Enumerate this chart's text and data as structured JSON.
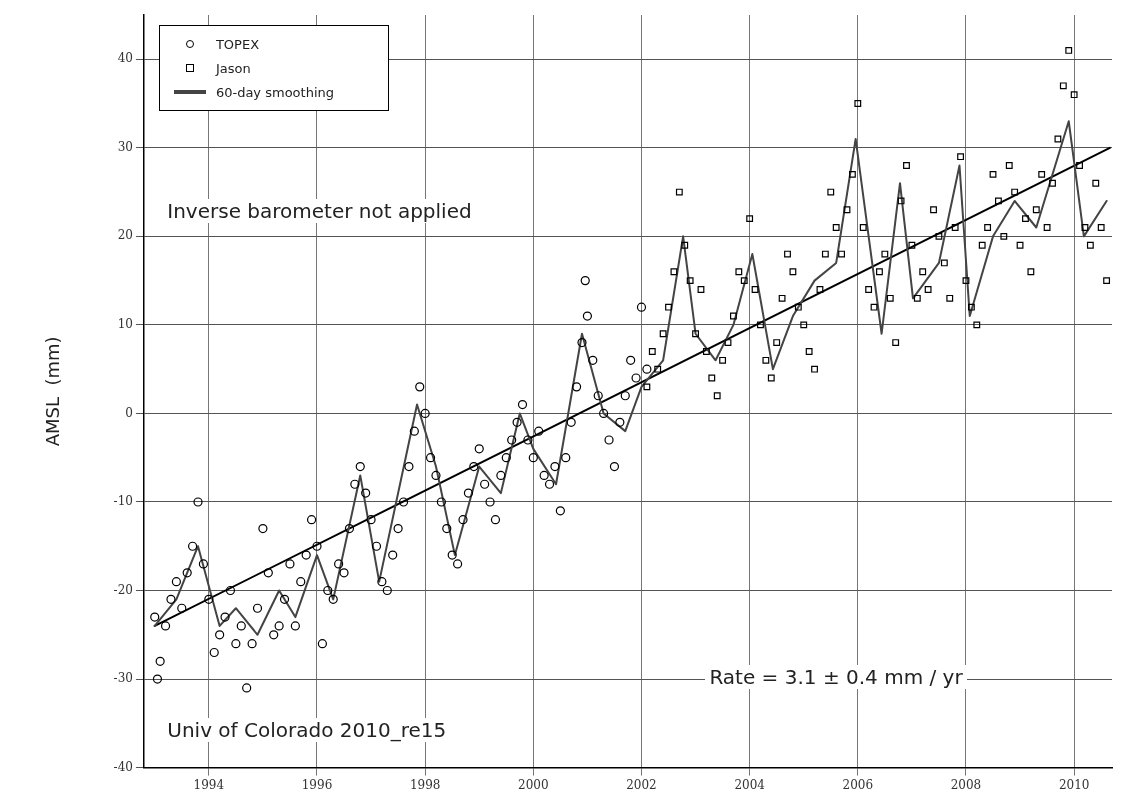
{
  "chart_data": {
    "type": "scatter",
    "ylabel": "AMSL  (mm)",
    "xlim": [
      1992.8,
      2010.7
    ],
    "xticks": [
      1994,
      1996,
      1998,
      2000,
      2002,
      2004,
      2006,
      2008,
      2010
    ],
    "ylim": [
      -40,
      45
    ],
    "yticks": [
      -40,
      -30,
      -20,
      -10,
      0,
      10,
      20,
      30,
      40
    ],
    "grid": true,
    "legend": "top left",
    "annotations": [
      "Inverse barometer not applied",
      "Rate = 3.1 ± 0.4 mm / yr",
      "Univ of Colorado 2010_re15"
    ],
    "series": [
      {
        "name": "TOPEX",
        "marker": "circle",
        "color": "#000000",
        "x": [
          1993.0,
          1993.05,
          1993.1,
          1993.2,
          1993.3,
          1993.4,
          1993.5,
          1993.6,
          1993.7,
          1993.8,
          1993.9,
          1994.0,
          1994.1,
          1994.2,
          1994.3,
          1994.4,
          1994.5,
          1994.6,
          1994.7,
          1994.8,
          1994.9,
          1995.0,
          1995.1,
          1995.2,
          1995.3,
          1995.4,
          1995.5,
          1995.6,
          1995.7,
          1995.8,
          1995.9,
          1996.0,
          1996.1,
          1996.2,
          1996.3,
          1996.4,
          1996.5,
          1996.6,
          1996.7,
          1996.8,
          1996.9,
          1997.0,
          1997.1,
          1997.2,
          1997.3,
          1997.4,
          1997.5,
          1997.6,
          1997.7,
          1997.8,
          1997.9,
          1998.0,
          1998.1,
          1998.2,
          1998.3,
          1998.4,
          1998.5,
          1998.6,
          1998.7,
          1998.8,
          1998.9,
          1999.0,
          1999.1,
          1999.2,
          1999.3,
          1999.4,
          1999.5,
          1999.6,
          1999.7,
          1999.8,
          1999.9,
          2000.0,
          2000.1,
          2000.2,
          2000.3,
          2000.4,
          2000.5,
          2000.6,
          2000.7,
          2000.8,
          2000.9,
          2000.96,
          2001.0,
          2001.1,
          2001.2,
          2001.3,
          2001.4,
          2001.5,
          2001.6,
          2001.7,
          2001.8,
          2001.9,
          2002.0,
          2002.1
        ],
        "values": [
          -23,
          -30,
          -28,
          -24,
          -21,
          -19,
          -22,
          -18,
          -15,
          -10,
          -17,
          -21,
          -27,
          -25,
          -23,
          -20,
          -26,
          -24,
          -31,
          -26,
          -22,
          -13,
          -18,
          -25,
          -24,
          -21,
          -17,
          -24,
          -19,
          -16,
          -12,
          -15,
          -26,
          -20,
          -21,
          -17,
          -18,
          -13,
          -8,
          -6,
          -9,
          -12,
          -15,
          -19,
          -20,
          -16,
          -13,
          -10,
          -6,
          -2,
          3,
          0,
          -5,
          -7,
          -10,
          -13,
          -16,
          -17,
          -12,
          -9,
          -6,
          -4,
          -8,
          -10,
          -12,
          -7,
          -5,
          -3,
          -1,
          1,
          -3,
          -5,
          -2,
          -7,
          -8,
          -6,
          -11,
          -5,
          -1,
          3,
          8,
          15,
          11,
          6,
          2,
          0,
          -3,
          -6,
          -1,
          2,
          6,
          4,
          12,
          5
        ]
      },
      {
        "name": "Jason",
        "marker": "square",
        "color": "#000000",
        "x": [
          2002.1,
          2002.2,
          2002.3,
          2002.4,
          2002.5,
          2002.6,
          2002.7,
          2002.8,
          2002.9,
          2003.0,
          2003.1,
          2003.2,
          2003.3,
          2003.4,
          2003.5,
          2003.6,
          2003.7,
          2003.8,
          2003.9,
          2004.0,
          2004.1,
          2004.2,
          2004.3,
          2004.4,
          2004.5,
          2004.6,
          2004.7,
          2004.8,
          2004.9,
          2005.0,
          2005.1,
          2005.2,
          2005.3,
          2005.4,
          2005.5,
          2005.6,
          2005.7,
          2005.8,
          2005.9,
          2006.0,
          2006.1,
          2006.2,
          2006.3,
          2006.4,
          2006.5,
          2006.6,
          2006.7,
          2006.8,
          2006.9,
          2007.0,
          2007.1,
          2007.2,
          2007.3,
          2007.4,
          2007.5,
          2007.6,
          2007.7,
          2007.8,
          2007.9,
          2008.0,
          2008.1,
          2008.2,
          2008.3,
          2008.4,
          2008.5,
          2008.6,
          2008.7,
          2008.8,
          2008.9,
          2009.0,
          2009.1,
          2009.2,
          2009.3,
          2009.4,
          2009.5,
          2009.6,
          2009.7,
          2009.8,
          2009.9,
          2010.0,
          2010.1,
          2010.2,
          2010.3,
          2010.4,
          2010.5,
          2010.6
        ],
        "values": [
          3,
          7,
          5,
          9,
          12,
          16,
          25,
          19,
          15,
          9,
          14,
          7,
          4,
          2,
          6,
          8,
          11,
          16,
          15,
          22,
          14,
          10,
          6,
          4,
          8,
          13,
          18,
          16,
          12,
          10,
          7,
          5,
          14,
          18,
          25,
          21,
          18,
          23,
          27,
          35,
          21,
          14,
          12,
          16,
          18,
          13,
          8,
          24,
          28,
          19,
          13,
          16,
          14,
          23,
          20,
          17,
          13,
          21,
          29,
          15,
          12,
          10,
          19,
          21,
          27,
          24,
          20,
          28,
          25,
          19,
          22,
          16,
          23,
          27,
          21,
          26,
          31,
          37,
          41,
          36,
          28,
          21,
          19,
          26,
          21,
          15
        ]
      },
      {
        "name": "60-day smoothing",
        "type": "line",
        "marker": "none",
        "color": "#444444",
        "x": [
          1993.0,
          1993.4,
          1993.8,
          1994.2,
          1994.5,
          1994.9,
          1995.3,
          1995.6,
          1996.0,
          1996.3,
          1996.8,
          1997.15,
          1997.85,
          1998.2,
          1998.55,
          1999.0,
          1999.4,
          1999.75,
          2000.0,
          2000.42,
          2000.9,
          2001.3,
          2001.7,
          2002.0,
          2002.4,
          2002.77,
          2003.0,
          2003.37,
          2003.7,
          2004.05,
          2004.43,
          2004.8,
          2005.2,
          2005.6,
          2005.96,
          2006.44,
          2006.78,
          2007.02,
          2007.5,
          2007.88,
          2008.07,
          2008.5,
          2008.9,
          2009.3,
          2009.9,
          2010.18,
          2010.6
        ],
        "values": [
          -24,
          -21,
          -15,
          -24,
          -22,
          -25,
          -20,
          -23,
          -16,
          -21,
          -7,
          -19,
          1,
          -6,
          -16,
          -6,
          -9,
          0,
          -4,
          -8,
          9,
          0,
          -2,
          3,
          6,
          20,
          9,
          6,
          10,
          18,
          5,
          11,
          15,
          17,
          31,
          9,
          26,
          13,
          17,
          28,
          11,
          20,
          24,
          21,
          33,
          20,
          24
        ]
      },
      {
        "type": "line",
        "marker": "none",
        "color": "#000000",
        "x": [
          1993.0,
          2010.66
        ],
        "values": [
          -24,
          30
        ]
      }
    ]
  }
}
